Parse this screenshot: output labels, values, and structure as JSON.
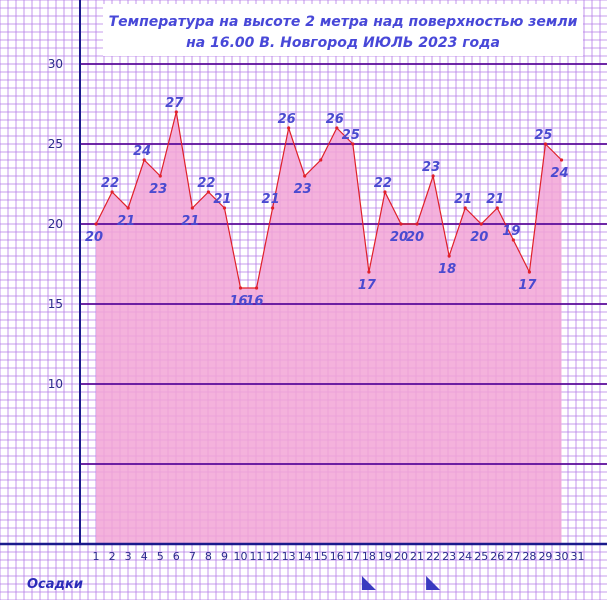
{
  "chart_data": {
    "type": "area",
    "title_line1": "Температура  на  высоте  2  метра  над  поверхностью  земли",
    "title_line2": "на  16.00  В. Новгород  ИЮЛЬ  2023  года",
    "x": [
      1,
      2,
      3,
      4,
      5,
      6,
      7,
      8,
      9,
      10,
      11,
      12,
      13,
      14,
      15,
      16,
      17,
      18,
      19,
      20,
      21,
      22,
      23,
      24,
      25,
      26,
      27,
      28,
      29,
      30
    ],
    "x_tick_labels": [
      "1",
      "2",
      "3",
      "4",
      "5",
      "6",
      "7",
      "8",
      "9",
      "10",
      "11",
      "12",
      "13",
      "14",
      "15",
      "16",
      "17",
      "18",
      "19",
      "20",
      "21",
      "22",
      "23",
      "24",
      "25",
      "26",
      "27",
      "28",
      "29",
      "30",
      "31"
    ],
    "values": [
      20,
      22,
      21,
      24,
      23,
      27,
      21,
      22,
      21,
      16,
      16,
      21,
      26,
      23,
      24,
      26,
      25,
      17,
      22,
      20,
      20,
      23,
      18,
      21,
      20,
      21,
      19,
      17,
      25,
      24
    ],
    "data_labels": [
      "20",
      "22",
      "21",
      "24",
      "23",
      "27",
      "21",
      "22",
      "21",
      "16",
      "16",
      "21",
      "26",
      "23",
      "",
      "26",
      "25",
      "17",
      "22",
      "20",
      "20",
      "23",
      "18",
      "21",
      "20",
      "21",
      "19",
      "17",
      "25",
      "24"
    ],
    "y_tick_labels": [
      "30",
      "25",
      "20",
      "15",
      "10"
    ],
    "ylim": [
      0,
      30
    ],
    "xlim": [
      0,
      31
    ],
    "grid": true,
    "precip_label": "Осадки",
    "precip_days": [
      18,
      22
    ],
    "colors": {
      "area_fill": "#f2a4d6",
      "line": "#e0202a",
      "grid_minor": "#b47ce8",
      "grid_major": "#5a0a9a",
      "axis": "#1a1a8c",
      "background": "#ffffff",
      "text": "#4a4ad0",
      "precip_marker": "#3a3ac0"
    }
  }
}
